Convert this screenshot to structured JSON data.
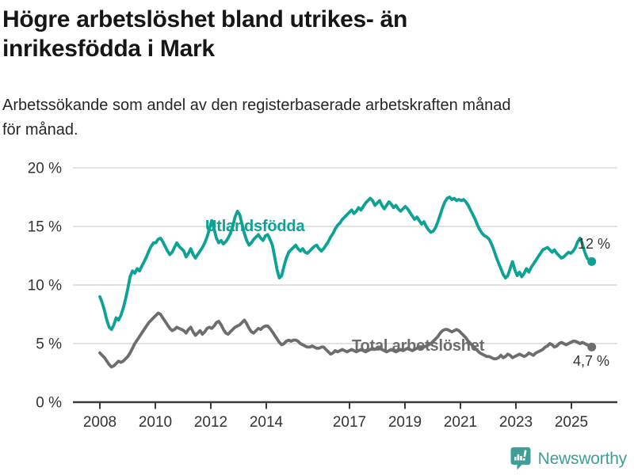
{
  "header": {
    "title_lines": [
      "Högre arbetslöshet bland utrikes- än",
      "inrikesfödda i Mark"
    ],
    "subtitle_lines": [
      "Arbetssökande som andel av den registerbaserade arbetskraften månad",
      "för månad."
    ]
  },
  "footer": {
    "brand": "Newsworthy",
    "icon": "bar-chart-speech-bubble",
    "brand_color": "#3f9e98"
  },
  "colors": {
    "foreign_line": "#0da296",
    "total_line": "#6d6d6d",
    "grid": "#d8d8d8",
    "axis": "#3b3b3b",
    "tick_text": "#333333",
    "value_label_text": "#333333"
  },
  "chart_data": {
    "type": "line",
    "frequency": "monthly",
    "x_start": "2008-01",
    "x_end": "2025-08",
    "x_tick_years": [
      2008,
      2010,
      2012,
      2014,
      2017,
      2019,
      2021,
      2023,
      2025
    ],
    "x_tick_labels": [
      "2008",
      "2010",
      "2012",
      "2014",
      "2017",
      "2019",
      "2021",
      "2023",
      "2025"
    ],
    "y_ticks": [
      0,
      5,
      10,
      15,
      20
    ],
    "y_tick_labels": [
      "0 %",
      "5 %",
      "10 %",
      "15 %",
      "20 %"
    ],
    "ylim": [
      0,
      20
    ],
    "grid": "horizontal",
    "legend_position": "inline-labels",
    "series": [
      {
        "name": "Utlandsfödda",
        "color": "#0da296",
        "end_label": "12 %",
        "end_value": 12.0,
        "values": [
          9.0,
          8.5,
          7.8,
          7.0,
          6.4,
          6.2,
          6.6,
          7.2,
          7.0,
          7.4,
          8.0,
          8.8,
          9.7,
          10.7,
          11.2,
          11.0,
          11.4,
          11.2,
          11.6,
          12.0,
          12.4,
          12.9,
          13.3,
          13.6,
          13.6,
          13.9,
          14.0,
          13.7,
          13.3,
          12.9,
          12.6,
          12.8,
          13.2,
          13.6,
          13.3,
          13.1,
          12.9,
          12.4,
          12.7,
          13.1,
          12.6,
          12.3,
          12.6,
          12.9,
          13.2,
          13.6,
          14.1,
          14.8,
          15.5,
          14.8,
          14.0,
          13.6,
          13.8,
          13.5,
          13.7,
          14.0,
          14.4,
          15.0,
          15.8,
          16.3,
          16.0,
          15.2,
          14.4,
          13.8,
          13.4,
          13.6,
          13.9,
          14.1,
          14.3,
          14.0,
          13.8,
          14.2,
          14.3,
          13.9,
          13.4,
          12.4,
          11.3,
          10.6,
          10.8,
          11.6,
          12.3,
          12.8,
          13.0,
          13.2,
          13.4,
          13.1,
          12.9,
          13.1,
          12.8,
          12.7,
          12.9,
          13.1,
          13.3,
          13.4,
          13.1,
          12.9,
          13.1,
          13.4,
          13.7,
          14.1,
          14.4,
          14.8,
          15.1,
          15.3,
          15.6,
          15.8,
          16.0,
          16.2,
          16.4,
          16.1,
          16.3,
          16.6,
          16.4,
          16.7,
          17.0,
          17.2,
          17.4,
          17.2,
          16.8,
          17.0,
          17.2,
          16.8,
          16.5,
          16.8,
          17.1,
          16.9,
          16.6,
          16.8,
          16.5,
          16.3,
          16.5,
          16.7,
          16.5,
          16.2,
          15.9,
          15.6,
          15.8,
          15.5,
          15.2,
          15.4,
          15.0,
          14.7,
          14.5,
          14.6,
          14.9,
          15.4,
          16.0,
          16.6,
          17.1,
          17.4,
          17.5,
          17.3,
          17.4,
          17.2,
          17.3,
          17.2,
          17.3,
          17.1,
          16.8,
          16.4,
          16.0,
          15.6,
          15.1,
          14.7,
          14.4,
          14.2,
          14.1,
          13.9,
          13.5,
          13.0,
          12.4,
          11.9,
          11.4,
          10.9,
          10.6,
          10.8,
          11.4,
          12.0,
          11.3,
          10.8,
          11.1,
          10.7,
          11.0,
          11.4,
          11.1,
          11.5,
          11.8,
          12.1,
          12.4,
          12.7,
          13.0,
          13.1,
          13.2,
          13.0,
          12.8,
          13.0,
          12.7,
          12.5,
          12.3,
          12.4,
          12.6,
          12.8,
          12.7,
          12.9,
          13.2,
          13.7,
          14.0,
          13.5,
          12.8,
          12.3,
          12.1,
          12.0
        ]
      },
      {
        "name": "Total arbetslöshet",
        "color": "#6d6d6d",
        "end_label": "4,7 %",
        "end_value": 4.7,
        "values": [
          4.2,
          4.0,
          3.8,
          3.5,
          3.2,
          3.0,
          3.1,
          3.3,
          3.5,
          3.4,
          3.5,
          3.7,
          3.9,
          4.2,
          4.6,
          5.0,
          5.3,
          5.6,
          5.9,
          6.2,
          6.5,
          6.8,
          7.0,
          7.2,
          7.4,
          7.6,
          7.5,
          7.2,
          6.9,
          6.6,
          6.3,
          6.1,
          6.2,
          6.4,
          6.3,
          6.2,
          6.1,
          5.9,
          6.2,
          6.4,
          6.0,
          5.7,
          5.9,
          6.1,
          5.8,
          6.0,
          6.3,
          6.4,
          6.3,
          6.5,
          6.8,
          6.9,
          6.6,
          6.2,
          5.9,
          5.8,
          6.0,
          6.2,
          6.4,
          6.5,
          6.6,
          6.8,
          7.0,
          6.7,
          6.3,
          6.0,
          5.9,
          6.1,
          6.3,
          6.2,
          6.4,
          6.5,
          6.5,
          6.3,
          6.0,
          5.7,
          5.4,
          5.1,
          4.9,
          5.0,
          5.2,
          5.3,
          5.2,
          5.3,
          5.3,
          5.2,
          5.0,
          4.9,
          4.8,
          4.7,
          4.7,
          4.8,
          4.7,
          4.6,
          4.6,
          4.7,
          4.7,
          4.5,
          4.3,
          4.1,
          4.2,
          4.4,
          4.3,
          4.4,
          4.5,
          4.4,
          4.3,
          4.4,
          4.5,
          4.4,
          4.3,
          4.4,
          4.5,
          4.4,
          4.3,
          4.4,
          4.5,
          4.6,
          4.5,
          4.6,
          4.6,
          4.5,
          4.4,
          4.3,
          4.4,
          4.5,
          4.4,
          4.3,
          4.4,
          4.5,
          4.4,
          4.5,
          4.6,
          4.5,
          4.4,
          4.5,
          4.6,
          4.7,
          4.6,
          4.7,
          4.8,
          4.9,
          5.0,
          5.2,
          5.4,
          5.6,
          5.9,
          6.1,
          6.2,
          6.2,
          6.1,
          6.0,
          6.1,
          6.2,
          6.1,
          5.9,
          5.7,
          5.5,
          5.2,
          5.0,
          4.8,
          4.6,
          4.4,
          4.2,
          4.1,
          4.0,
          3.9,
          3.9,
          3.8,
          3.7,
          3.7,
          3.8,
          4.0,
          3.8,
          3.9,
          4.1,
          4.0,
          3.8,
          3.9,
          4.0,
          4.1,
          4.0,
          3.9,
          4.0,
          4.2,
          4.1,
          4.0,
          4.2,
          4.3,
          4.4,
          4.5,
          4.7,
          4.8,
          5.0,
          4.9,
          4.7,
          4.8,
          5.0,
          5.1,
          5.0,
          4.9,
          5.0,
          5.1,
          5.2,
          5.2,
          5.1,
          5.0,
          5.1,
          5.0,
          4.9,
          4.8,
          4.7
        ]
      }
    ]
  }
}
